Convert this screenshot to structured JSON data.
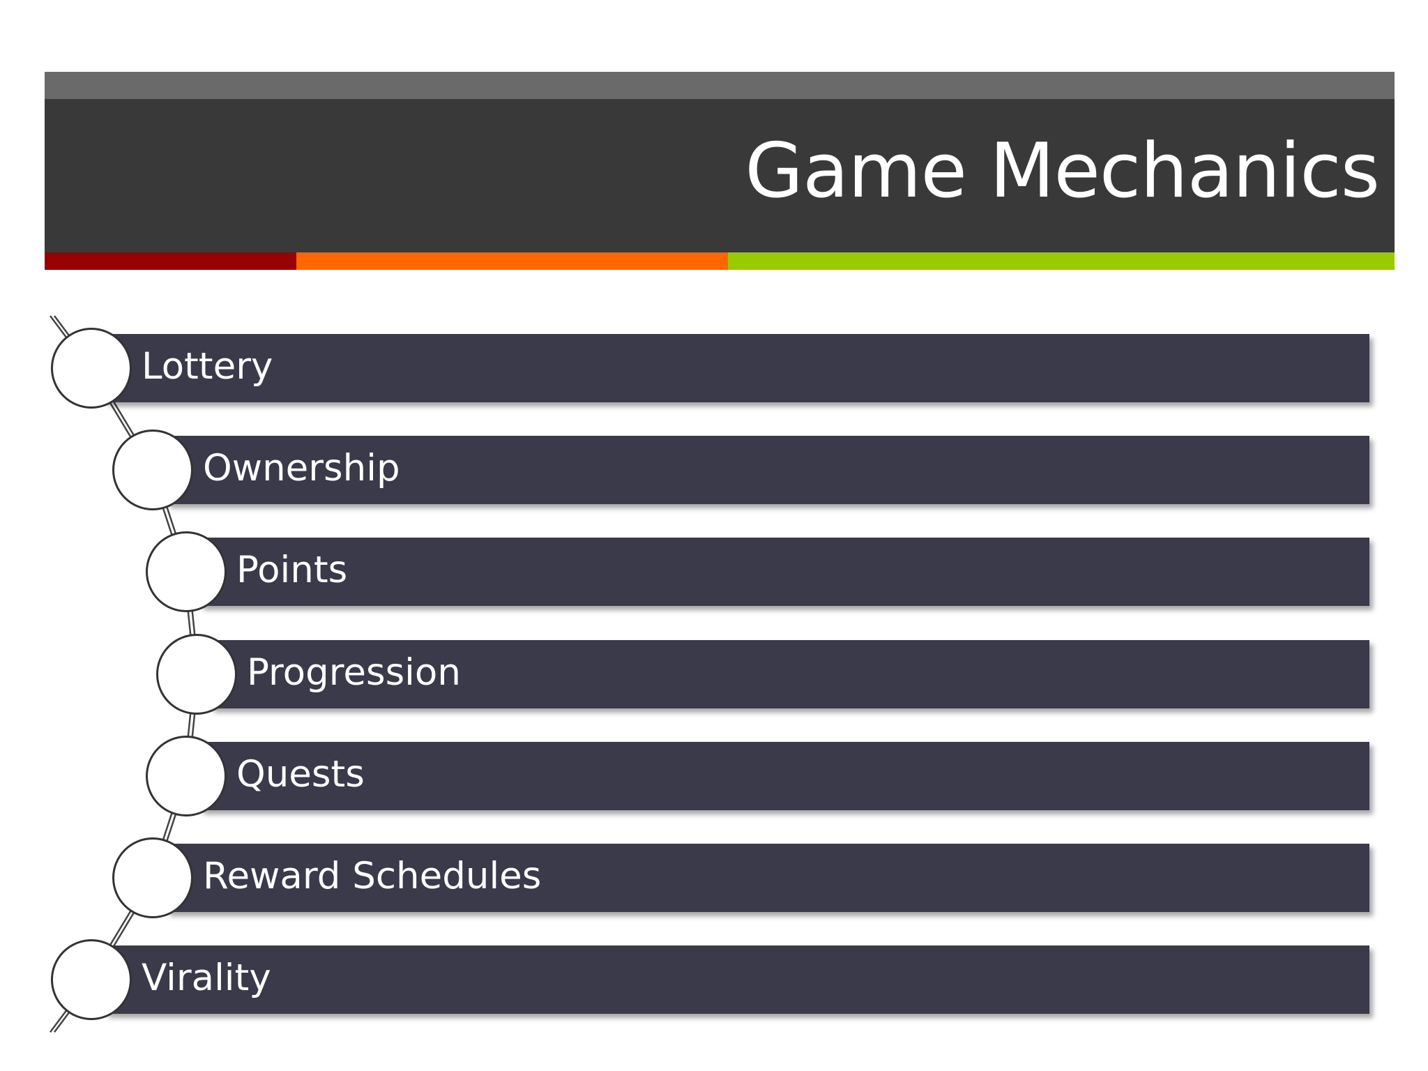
{
  "slide": {
    "title": "Game Mechanics",
    "accent_colors": {
      "red": "#990000",
      "orange": "#ff6600",
      "green": "#99cc00"
    },
    "bar_color": "#3a3a4a",
    "header_color": "#393939"
  },
  "items": [
    {
      "label": "Lottery"
    },
    {
      "label": "Ownership"
    },
    {
      "label": "Points"
    },
    {
      "label": "Progression"
    },
    {
      "label": "Quests"
    },
    {
      "label": "Reward Schedules"
    },
    {
      "label": "Virality"
    }
  ]
}
